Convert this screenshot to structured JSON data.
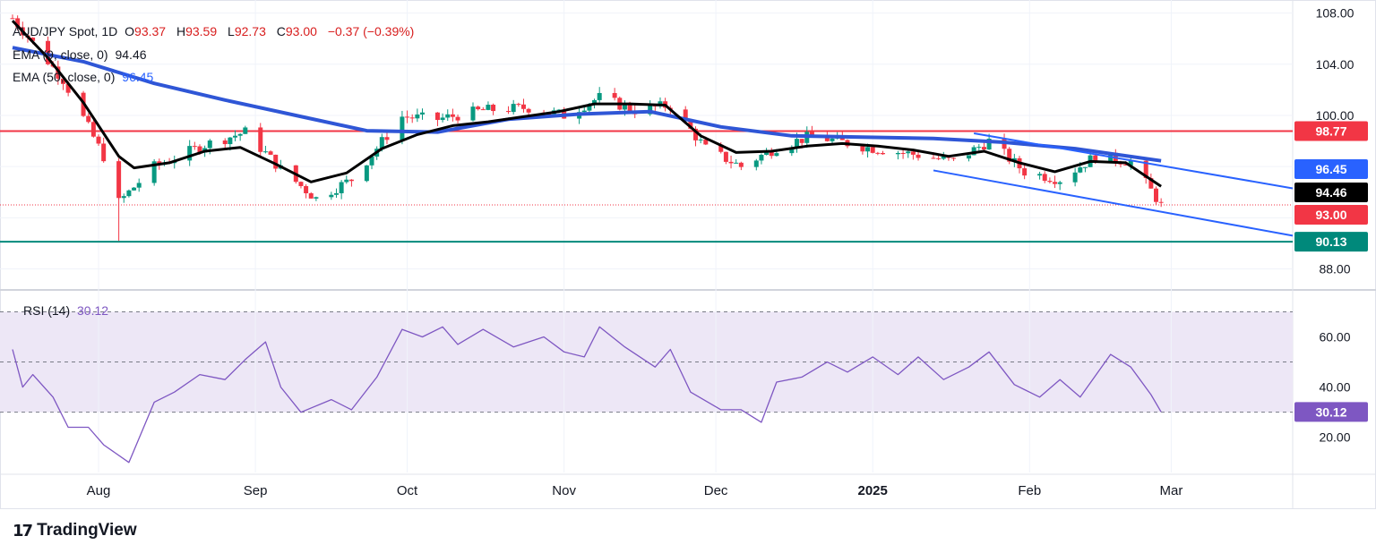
{
  "legend": {
    "symbol": "AUD/JPY Spot, 1D",
    "open_label": "O",
    "open": "93.37",
    "high_label": "H",
    "high": "93.59",
    "low_label": "L",
    "low": "92.73",
    "close_label": "C",
    "close": "93.00",
    "change": "−0.37 (−0.39%)",
    "ema9_label": "EMA (9, close, 0)",
    "ema9_value": "94.46",
    "ema50_label": "EMA (50, close, 0)",
    "ema50_value": "96.45",
    "rsi_label": "RSI (14)",
    "rsi_value": "30.12"
  },
  "brand": {
    "name": "TradingView"
  },
  "colors": {
    "up": "#089981",
    "down": "#f23645",
    "ema9": "#000000",
    "ema50": "#2f56d6",
    "resistance": "#f23645",
    "support": "#00897b",
    "channel": "#2962ff",
    "rsi": "#7e57c2",
    "rsi_band": "#ede7f6"
  },
  "chart_data": [
    {
      "type": "candlestick",
      "title": "AUD/JPY Spot, 1D",
      "ylim": [
        86.5,
        108.6
      ],
      "y_ticks": [
        "108.00",
        "104.00",
        "100.00",
        "96.00",
        "92.00",
        "88.00"
      ],
      "x_tick_labels": [
        "Aug",
        "Sep",
        "Oct",
        "Nov",
        "Dec",
        "2025",
        "Feb",
        "Mar"
      ],
      "x_tick_dates": [
        "2024-08-01",
        "2024-09-01",
        "2024-10-01",
        "2024-11-01",
        "2024-12-01",
        "2025-01-01",
        "2025-02-01",
        "2025-03-01"
      ],
      "x_range": [
        "2024-07-15",
        "2025-03-25"
      ],
      "last_close": 93.0,
      "horizontal_levels": [
        {
          "name": "resistance",
          "value": 98.77,
          "label": "98.77"
        },
        {
          "name": "support",
          "value": 90.13,
          "label": "90.13"
        }
      ],
      "price_tags": [
        {
          "name": "ema50",
          "value": 96.45,
          "label": "96.45"
        },
        {
          "name": "ema9",
          "value": 94.46,
          "label": "94.46"
        },
        {
          "name": "close",
          "value": 93.0,
          "label": "93.00"
        }
      ],
      "channel": {
        "upper": [
          [
            "2025-01-21",
            98.6
          ],
          [
            "2025-03-25",
            94.3
          ]
        ],
        "lower": [
          [
            "2025-01-13",
            95.7
          ],
          [
            "2025-03-25",
            90.6
          ]
        ]
      },
      "series": [
        {
          "name": "EMA 9",
          "values": [
            [
              "2024-07-15",
              107.4
            ],
            [
              "2024-07-22",
              104.5
            ],
            [
              "2024-07-29",
              101.0
            ],
            [
              "2024-08-05",
              96.8
            ],
            [
              "2024-08-08",
              95.9
            ],
            [
              "2024-08-15",
              96.3
            ],
            [
              "2024-08-22",
              97.2
            ],
            [
              "2024-08-29",
              97.5
            ],
            [
              "2024-09-05",
              96.2
            ],
            [
              "2024-09-12",
              94.8
            ],
            [
              "2024-09-19",
              95.5
            ],
            [
              "2024-09-26",
              97.4
            ],
            [
              "2024-10-03",
              98.5
            ],
            [
              "2024-10-10",
              99.2
            ],
            [
              "2024-10-17",
              99.5
            ],
            [
              "2024-10-24",
              99.9
            ],
            [
              "2024-10-31",
              100.3
            ],
            [
              "2024-11-07",
              100.9
            ],
            [
              "2024-11-14",
              100.9
            ],
            [
              "2024-11-21",
              100.8
            ],
            [
              "2024-11-28",
              98.4
            ],
            [
              "2024-12-05",
              97.1
            ],
            [
              "2024-12-12",
              97.2
            ],
            [
              "2024-12-19",
              97.6
            ],
            [
              "2024-12-26",
              97.8
            ],
            [
              "2025-01-02",
              97.6
            ],
            [
              "2025-01-09",
              97.3
            ],
            [
              "2025-01-16",
              96.8
            ],
            [
              "2025-01-23",
              97.2
            ],
            [
              "2025-01-30",
              96.3
            ],
            [
              "2025-02-06",
              95.6
            ],
            [
              "2025-02-13",
              96.4
            ],
            [
              "2025-02-20",
              96.3
            ],
            [
              "2025-02-27",
              94.46
            ]
          ]
        },
        {
          "name": "EMA 50",
          "values": [
            [
              "2024-07-15",
              105.3
            ],
            [
              "2024-07-29",
              104.2
            ],
            [
              "2024-08-12",
              102.5
            ],
            [
              "2024-08-26",
              101.2
            ],
            [
              "2024-09-09",
              100.0
            ],
            [
              "2024-09-23",
              98.8
            ],
            [
              "2024-10-07",
              98.7
            ],
            [
              "2024-10-21",
              99.7
            ],
            [
              "2024-11-04",
              100.1
            ],
            [
              "2024-11-18",
              100.3
            ],
            [
              "2024-12-02",
              99.1
            ],
            [
              "2024-12-16",
              98.4
            ],
            [
              "2024-12-30",
              98.3
            ],
            [
              "2025-01-13",
              98.2
            ],
            [
              "2025-01-27",
              97.9
            ],
            [
              "2025-02-10",
              97.4
            ],
            [
              "2025-02-27",
              96.45
            ]
          ]
        },
        {
          "name": "Close",
          "values": [
            [
              "2024-07-15",
              107.6
            ],
            [
              "2024-07-25",
              102.8
            ],
            [
              "2024-08-02",
              96.8
            ],
            [
              "2024-08-05",
              93.2
            ],
            [
              "2024-08-12",
              96.0
            ],
            [
              "2024-08-22",
              97.7
            ],
            [
              "2024-08-30",
              98.7
            ],
            [
              "2024-09-06",
              95.8
            ],
            [
              "2024-09-13",
              93.5
            ],
            [
              "2024-09-20",
              95.0
            ],
            [
              "2024-09-30",
              99.9
            ],
            [
              "2024-10-07",
              99.7
            ],
            [
              "2024-10-16",
              100.4
            ],
            [
              "2024-10-25",
              100.6
            ],
            [
              "2024-11-01",
              100.0
            ],
            [
              "2024-11-08",
              101.4
            ],
            [
              "2024-11-15",
              100.4
            ],
            [
              "2024-11-22",
              100.8
            ],
            [
              "2024-11-29",
              97.4
            ],
            [
              "2024-12-06",
              96.0
            ],
            [
              "2024-12-13",
              97.5
            ],
            [
              "2024-12-20",
              98.4
            ],
            [
              "2024-12-31",
              97.5
            ],
            [
              "2025-01-10",
              96.9
            ],
            [
              "2025-01-17",
              96.4
            ],
            [
              "2025-01-24",
              98.0
            ],
            [
              "2025-01-31",
              95.6
            ],
            [
              "2025-02-07",
              95.0
            ],
            [
              "2025-02-14",
              96.8
            ],
            [
              "2025-02-21",
              96.4
            ],
            [
              "2025-02-27",
              93.0
            ]
          ]
        }
      ]
    },
    {
      "type": "line",
      "title": "RSI (14)",
      "ylim": [
        6,
        78
      ],
      "y_ticks": [
        "60.00",
        "40.00",
        "20.00"
      ],
      "bands": {
        "upper": 70,
        "middle": 50,
        "lower": 30
      },
      "last_value": 30.12,
      "series": [
        {
          "name": "RSI",
          "values": [
            [
              "2024-07-15",
              55
            ],
            [
              "2024-07-17",
              40
            ],
            [
              "2024-07-19",
              45
            ],
            [
              "2024-07-23",
              36
            ],
            [
              "2024-07-26",
              24
            ],
            [
              "2024-07-30",
              24
            ],
            [
              "2024-08-02",
              17
            ],
            [
              "2024-08-07",
              10
            ],
            [
              "2024-08-12",
              34
            ],
            [
              "2024-08-16",
              38
            ],
            [
              "2024-08-21",
              45
            ],
            [
              "2024-08-26",
              43
            ],
            [
              "2024-08-30",
              51
            ],
            [
              "2024-09-03",
              58
            ],
            [
              "2024-09-06",
              40
            ],
            [
              "2024-09-10",
              30
            ],
            [
              "2024-09-16",
              35
            ],
            [
              "2024-09-20",
              31
            ],
            [
              "2024-09-25",
              44
            ],
            [
              "2024-09-30",
              63
            ],
            [
              "2024-10-04",
              60
            ],
            [
              "2024-10-08",
              64
            ],
            [
              "2024-10-11",
              57
            ],
            [
              "2024-10-16",
              63
            ],
            [
              "2024-10-22",
              56
            ],
            [
              "2024-10-28",
              60
            ],
            [
              "2024-11-01",
              54
            ],
            [
              "2024-11-05",
              52
            ],
            [
              "2024-11-08",
              64
            ],
            [
              "2024-11-13",
              56
            ],
            [
              "2024-11-19",
              48
            ],
            [
              "2024-11-22",
              55
            ],
            [
              "2024-11-26",
              38
            ],
            [
              "2024-12-02",
              31
            ],
            [
              "2024-12-06",
              31
            ],
            [
              "2024-12-10",
              26
            ],
            [
              "2024-12-13",
              42
            ],
            [
              "2024-12-18",
              44
            ],
            [
              "2024-12-23",
              50
            ],
            [
              "2024-12-27",
              46
            ],
            [
              "2025-01-01",
              52
            ],
            [
              "2025-01-06",
              45
            ],
            [
              "2025-01-10",
              52
            ],
            [
              "2025-01-15",
              43
            ],
            [
              "2025-01-20",
              48
            ],
            [
              "2025-01-24",
              54
            ],
            [
              "2025-01-29",
              41
            ],
            [
              "2025-02-03",
              36
            ],
            [
              "2025-02-07",
              43
            ],
            [
              "2025-02-11",
              36
            ],
            [
              "2025-02-17",
              53
            ],
            [
              "2025-02-21",
              48
            ],
            [
              "2025-02-25",
              37
            ],
            [
              "2025-02-27",
              30.12
            ]
          ]
        }
      ]
    }
  ]
}
